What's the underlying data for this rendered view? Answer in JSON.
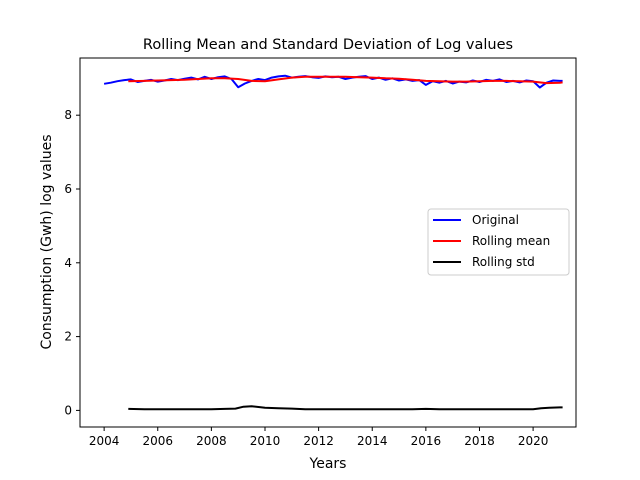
{
  "chart_data": {
    "type": "line",
    "title": "Rolling Mean and Standard Deviation of Log values",
    "xlabel": "Years",
    "ylabel": "Consumption (Gwh) log values",
    "xlim": [
      2003.1,
      2021.6
    ],
    "ylim": [
      -0.45,
      9.55
    ],
    "xticks": [
      2004,
      2006,
      2008,
      2010,
      2012,
      2014,
      2016,
      2018,
      2020
    ],
    "yticks": [
      0,
      2,
      4,
      6,
      8
    ],
    "grid": false,
    "legend_position": "center-right",
    "series": [
      {
        "name": "Original",
        "color": "#0000ff",
        "x": [
          2004.0,
          2004.25,
          2004.5,
          2004.75,
          2005.0,
          2005.25,
          2005.5,
          2005.75,
          2006.0,
          2006.25,
          2006.5,
          2006.75,
          2007.0,
          2007.25,
          2007.5,
          2007.75,
          2008.0,
          2008.25,
          2008.5,
          2008.75,
          2009.0,
          2009.25,
          2009.5,
          2009.75,
          2010.0,
          2010.25,
          2010.5,
          2010.75,
          2011.0,
          2011.25,
          2011.5,
          2011.75,
          2012.0,
          2012.25,
          2012.5,
          2012.75,
          2013.0,
          2013.25,
          2013.5,
          2013.75,
          2014.0,
          2014.25,
          2014.5,
          2014.75,
          2015.0,
          2015.25,
          2015.5,
          2015.75,
          2016.0,
          2016.25,
          2016.5,
          2016.75,
          2017.0,
          2017.25,
          2017.5,
          2017.75,
          2018.0,
          2018.25,
          2018.5,
          2018.75,
          2019.0,
          2019.25,
          2019.5,
          2019.75,
          2020.0,
          2020.25,
          2020.5,
          2020.75,
          2021.0,
          2021.1
        ],
        "values": [
          8.85,
          8.88,
          8.92,
          8.95,
          8.97,
          8.9,
          8.93,
          8.96,
          8.91,
          8.94,
          8.98,
          8.95,
          8.99,
          9.02,
          8.97,
          9.04,
          8.98,
          9.03,
          9.05,
          8.98,
          8.76,
          8.86,
          8.93,
          8.98,
          8.95,
          9.02,
          9.05,
          9.07,
          9.02,
          9.04,
          9.06,
          9.03,
          9.01,
          9.05,
          9.03,
          9.04,
          8.98,
          9.02,
          9.04,
          9.06,
          8.98,
          9.02,
          8.96,
          9.0,
          8.94,
          8.97,
          8.93,
          8.95,
          8.82,
          8.92,
          8.88,
          8.93,
          8.86,
          8.91,
          8.89,
          8.94,
          8.9,
          8.96,
          8.93,
          8.97,
          8.9,
          8.93,
          8.89,
          8.94,
          8.92,
          8.75,
          8.88,
          8.94,
          8.93,
          8.93
        ]
      },
      {
        "name": "Rolling mean",
        "color": "#ff0000",
        "x": [
          2004.9,
          2005.5,
          2006.0,
          2006.5,
          2007.0,
          2007.5,
          2008.0,
          2008.5,
          2009.0,
          2009.5,
          2010.0,
          2010.5,
          2011.0,
          2011.5,
          2012.0,
          2012.5,
          2013.0,
          2013.5,
          2014.0,
          2014.5,
          2015.0,
          2015.5,
          2016.0,
          2016.5,
          2017.0,
          2017.5,
          2018.0,
          2018.5,
          2019.0,
          2019.5,
          2020.0,
          2020.5,
          2021.0,
          2021.1
        ],
        "values": [
          8.92,
          8.93,
          8.94,
          8.95,
          8.96,
          8.98,
          9.0,
          9.0,
          8.98,
          8.93,
          8.92,
          8.97,
          9.02,
          9.04,
          9.04,
          9.04,
          9.04,
          9.03,
          9.02,
          9.0,
          8.99,
          8.96,
          8.93,
          8.92,
          8.91,
          8.91,
          8.92,
          8.93,
          8.93,
          8.92,
          8.91,
          8.87,
          8.88,
          8.89
        ]
      },
      {
        "name": "Rolling std",
        "color": "#000000",
        "x": [
          2004.9,
          2005.5,
          2006.0,
          2006.5,
          2007.0,
          2007.5,
          2008.0,
          2008.5,
          2008.9,
          2009.2,
          2009.5,
          2009.8,
          2010.0,
          2010.5,
          2011.0,
          2011.5,
          2012.0,
          2012.5,
          2013.0,
          2013.5,
          2014.0,
          2014.5,
          2015.0,
          2015.5,
          2016.0,
          2016.5,
          2017.0,
          2017.5,
          2018.0,
          2018.5,
          2019.0,
          2019.5,
          2020.0,
          2020.3,
          2020.6,
          2021.0,
          2021.1
        ],
        "values": [
          0.04,
          0.03,
          0.03,
          0.03,
          0.03,
          0.03,
          0.03,
          0.04,
          0.05,
          0.1,
          0.11,
          0.09,
          0.07,
          0.06,
          0.05,
          0.03,
          0.03,
          0.03,
          0.03,
          0.03,
          0.03,
          0.03,
          0.03,
          0.03,
          0.04,
          0.03,
          0.03,
          0.03,
          0.03,
          0.03,
          0.03,
          0.03,
          0.03,
          0.06,
          0.07,
          0.08,
          0.08
        ]
      }
    ]
  }
}
